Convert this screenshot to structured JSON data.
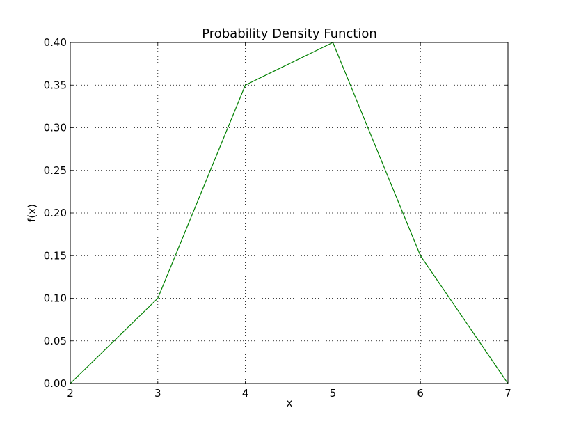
{
  "chart_data": {
    "type": "line",
    "title": "Probability Density Function",
    "xlabel": "x",
    "ylabel": "f(x)",
    "xlim": [
      2,
      7
    ],
    "ylim": [
      0.0,
      0.4
    ],
    "grid": true,
    "x_ticks": [
      "2",
      "3",
      "4",
      "5",
      "6",
      "7"
    ],
    "y_ticks": [
      "0.00",
      "0.05",
      "0.10",
      "0.15",
      "0.20",
      "0.25",
      "0.30",
      "0.35",
      "0.40"
    ],
    "series": [
      {
        "x": [
          2,
          3,
          4,
          5,
          6,
          7
        ],
        "values": [
          0.0,
          0.1,
          0.35,
          0.4,
          0.15,
          0.0
        ],
        "color": "#008000"
      }
    ]
  }
}
